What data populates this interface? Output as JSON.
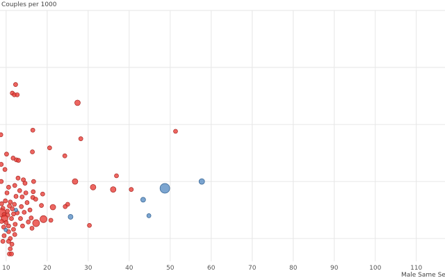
{
  "chart_data": {
    "type": "scatter",
    "title": "",
    "xlabel": "Male Same Sex C",
    "ylabel": "Couples per 1000",
    "x_ticks": [
      10,
      20,
      30,
      40,
      50,
      60,
      70,
      80,
      90,
      100,
      110
    ],
    "xlim": [
      8.5,
      117
    ],
    "ylim": [
      -0.4,
      4.0
    ],
    "y_gridlines": [
      0,
      1,
      2,
      3,
      4
    ],
    "grid": true,
    "colors": {
      "red": "#e8403a",
      "blue": "#5b8fc4"
    },
    "series": [
      {
        "color_key": "red",
        "points": [
          {
            "x": 12.3,
            "y": 2.7,
            "s": 3
          },
          {
            "x": 11.5,
            "y": 2.55,
            "s": 3
          },
          {
            "x": 12.0,
            "y": 2.52,
            "s": 3
          },
          {
            "x": 12.7,
            "y": 2.52,
            "s": 3
          },
          {
            "x": 27.4,
            "y": 2.38,
            "s": 4
          },
          {
            "x": 8.7,
            "y": 1.82,
            "s": 3
          },
          {
            "x": 16.5,
            "y": 1.9,
            "s": 3
          },
          {
            "x": 28.2,
            "y": 1.75,
            "s": 3
          },
          {
            "x": 51.3,
            "y": 1.88,
            "s": 3
          },
          {
            "x": 20.6,
            "y": 1.59,
            "s": 3
          },
          {
            "x": 16.4,
            "y": 1.52,
            "s": 3
          },
          {
            "x": 10.1,
            "y": 1.48,
            "s": 3
          },
          {
            "x": 24.3,
            "y": 1.45,
            "s": 3
          },
          {
            "x": 11.7,
            "y": 1.41,
            "s": 3
          },
          {
            "x": 12.5,
            "y": 1.38,
            "s": 3
          },
          {
            "x": 13.0,
            "y": 1.37,
            "s": 3
          },
          {
            "x": 8.8,
            "y": 1.3,
            "s": 3
          },
          {
            "x": 9.7,
            "y": 1.21,
            "s": 3
          },
          {
            "x": 36.9,
            "y": 1.1,
            "s": 3
          },
          {
            "x": 12.9,
            "y": 1.06,
            "s": 3
          },
          {
            "x": 14.2,
            "y": 1.03,
            "s": 3
          },
          {
            "x": 8.8,
            "y": 1.0,
            "s": 3
          },
          {
            "x": 16.7,
            "y": 1.0,
            "s": 3
          },
          {
            "x": 26.8,
            "y": 1.0,
            "s": 4
          },
          {
            "x": 14.6,
            "y": 0.97,
            "s": 3
          },
          {
            "x": 12.1,
            "y": 0.93,
            "s": 3
          },
          {
            "x": 10.6,
            "y": 0.9,
            "s": 3
          },
          {
            "x": 31.2,
            "y": 0.9,
            "s": 4
          },
          {
            "x": 36.1,
            "y": 0.86,
            "s": 4
          },
          {
            "x": 40.5,
            "y": 0.86,
            "s": 3
          },
          {
            "x": 13.3,
            "y": 0.84,
            "s": 3
          },
          {
            "x": 16.6,
            "y": 0.82,
            "s": 3
          },
          {
            "x": 14.8,
            "y": 0.8,
            "s": 3
          },
          {
            "x": 10.2,
            "y": 0.8,
            "s": 3
          },
          {
            "x": 18.9,
            "y": 0.78,
            "s": 3
          },
          {
            "x": 12.4,
            "y": 0.74,
            "s": 3
          },
          {
            "x": 13.9,
            "y": 0.73,
            "s": 3
          },
          {
            "x": 16.5,
            "y": 0.72,
            "s": 3
          },
          {
            "x": 17.2,
            "y": 0.69,
            "s": 3
          },
          {
            "x": 9.8,
            "y": 0.66,
            "s": 3
          },
          {
            "x": 11.0,
            "y": 0.64,
            "s": 3
          },
          {
            "x": 15.1,
            "y": 0.63,
            "s": 3
          },
          {
            "x": 8.9,
            "y": 0.61,
            "s": 3
          },
          {
            "x": 12.0,
            "y": 0.6,
            "s": 3
          },
          {
            "x": 18.6,
            "y": 0.58,
            "s": 3
          },
          {
            "x": 10.8,
            "y": 0.57,
            "s": 3
          },
          {
            "x": 13.7,
            "y": 0.56,
            "s": 3
          },
          {
            "x": 21.4,
            "y": 0.55,
            "s": 4
          },
          {
            "x": 25.0,
            "y": 0.6,
            "s": 3
          },
          {
            "x": 24.4,
            "y": 0.56,
            "s": 3
          },
          {
            "x": 9.2,
            "y": 0.53,
            "s": 3
          },
          {
            "x": 11.5,
            "y": 0.52,
            "s": 3
          },
          {
            "x": 15.8,
            "y": 0.5,
            "s": 3
          },
          {
            "x": 10.3,
            "y": 0.48,
            "s": 3
          },
          {
            "x": 14.4,
            "y": 0.46,
            "s": 3
          },
          {
            "x": 12.7,
            "y": 0.45,
            "s": 3
          },
          {
            "x": 8.9,
            "y": 0.45,
            "s": 6
          },
          {
            "x": 11.8,
            "y": 0.43,
            "s": 3
          },
          {
            "x": 9.5,
            "y": 0.42,
            "s": 3
          },
          {
            "x": 10.4,
            "y": 0.41,
            "s": 3
          },
          {
            "x": 9.6,
            "y": 0.35,
            "s": 5
          },
          {
            "x": 11.3,
            "y": 0.35,
            "s": 3
          },
          {
            "x": 13.5,
            "y": 0.35,
            "s": 3
          },
          {
            "x": 16.1,
            "y": 0.36,
            "s": 3
          },
          {
            "x": 19.1,
            "y": 0.34,
            "s": 5
          },
          {
            "x": 20.9,
            "y": 0.32,
            "s": 3
          },
          {
            "x": 8.9,
            "y": 0.3,
            "s": 3
          },
          {
            "x": 10.0,
            "y": 0.28,
            "s": 3
          },
          {
            "x": 17.3,
            "y": 0.27,
            "s": 5
          },
          {
            "x": 15.4,
            "y": 0.29,
            "s": 3
          },
          {
            "x": 12.2,
            "y": 0.25,
            "s": 3
          },
          {
            "x": 14.0,
            "y": 0.22,
            "s": 3
          },
          {
            "x": 10.6,
            "y": 0.22,
            "s": 3
          },
          {
            "x": 9.4,
            "y": 0.2,
            "s": 3
          },
          {
            "x": 11.8,
            "y": 0.16,
            "s": 3
          },
          {
            "x": 16.3,
            "y": 0.18,
            "s": 3
          },
          {
            "x": 30.3,
            "y": 0.23,
            "s": 3
          },
          {
            "x": 10.6,
            "y": 0.12,
            "s": 3
          },
          {
            "x": 12.1,
            "y": 0.07,
            "s": 3
          },
          {
            "x": 9.5,
            "y": 0.05,
            "s": 3
          },
          {
            "x": 11.0,
            "y": 0.0,
            "s": 3
          },
          {
            "x": 10.6,
            "y": -0.05,
            "s": 3
          },
          {
            "x": 9.2,
            "y": -0.05,
            "s": 3
          },
          {
            "x": 11.4,
            "y": -0.1,
            "s": 3
          },
          {
            "x": 11.0,
            "y": -0.18,
            "s": 3
          },
          {
            "x": 10.8,
            "y": -0.27,
            "s": 3
          },
          {
            "x": 11.3,
            "y": -0.27,
            "s": 3
          }
        ]
      },
      {
        "color_key": "blue",
        "points": [
          {
            "x": 48.7,
            "y": 0.88,
            "s": 7
          },
          {
            "x": 57.7,
            "y": 1.0,
            "s": 4
          },
          {
            "x": 43.4,
            "y": 0.68,
            "s": 3.5
          },
          {
            "x": 44.8,
            "y": 0.4,
            "s": 3
          },
          {
            "x": 25.7,
            "y": 0.38,
            "s": 3.5
          },
          {
            "x": 12.4,
            "y": 0.5,
            "s": 2.5
          },
          {
            "x": 9.9,
            "y": 0.15,
            "s": 2.5
          }
        ]
      }
    ]
  }
}
